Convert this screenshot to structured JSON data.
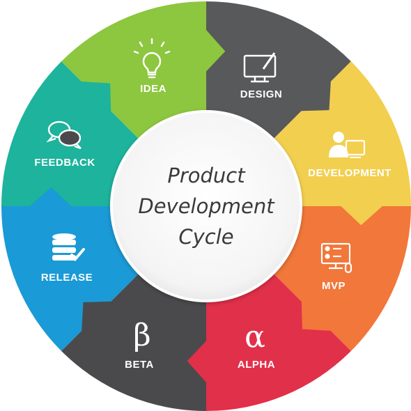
{
  "center": {
    "lines": [
      "Product",
      "Development",
      "Cycle"
    ]
  },
  "segments": [
    {
      "id": "idea",
      "label": "IDEA",
      "color": "#1A9AD6",
      "icon": "lightbulb-icon"
    },
    {
      "id": "design",
      "label": "DESIGN",
      "color": "#1DB39C",
      "icon": "monitor-pen-icon"
    },
    {
      "id": "development",
      "label": "DEVELOPMENT",
      "color": "#8DC63F",
      "icon": "developer-icon"
    },
    {
      "id": "mvp",
      "label": "MVP",
      "color": "#58595B",
      "icon": "mvp-screen-icon"
    },
    {
      "id": "alpha",
      "label": "ALPHA",
      "color": "#F2CF4F",
      "icon": "alpha-icon",
      "glyph": "α"
    },
    {
      "id": "beta",
      "label": "BETA",
      "color": "#F1773A",
      "icon": "beta-icon",
      "glyph": "β"
    },
    {
      "id": "release",
      "label": "RELEASE",
      "color": "#E1304A",
      "icon": "database-check-icon"
    },
    {
      "id": "feedback",
      "label": "FEEDBACK",
      "color": "#4A4A4C",
      "icon": "chat-bubbles-icon"
    }
  ]
}
